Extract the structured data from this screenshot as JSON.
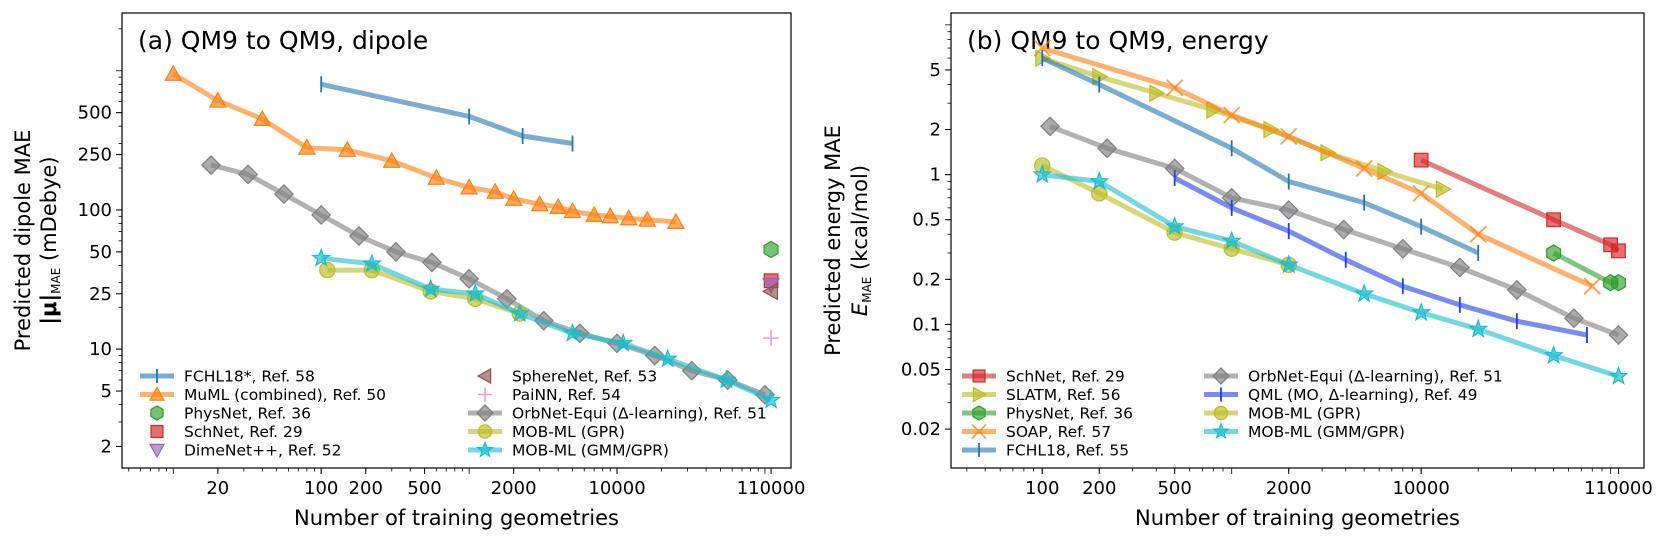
{
  "chart_data": [
    {
      "type": "line",
      "title": "(a) QM9 to QM9, dipole",
      "xlabel": "Number of training geometries",
      "ylabel": [
        "Predicted dipole MAE",
        "|μ|",
        "MAE",
        " (mDebye)"
      ],
      "xscale": "log",
      "yscale": "log",
      "xlim": [
        4.5,
        150000
      ],
      "ylim": [
        1.4,
        2600
      ],
      "xticks": [
        20,
        100,
        200,
        500,
        2000,
        10000,
        110000
      ],
      "xticklabels": [
        "20",
        "100",
        "200",
        "500",
        "2000",
        "10000",
        "110000"
      ],
      "yticks": [
        2,
        5,
        10,
        25,
        50,
        100,
        250,
        500
      ],
      "yticklabels": [
        "2",
        "5",
        "10",
        "25",
        "50",
        "100",
        "250",
        "500"
      ],
      "legend": "lower-left",
      "series": [
        {
          "name": "FCHL18*, Ref. 58",
          "color": "#1f77b4",
          "marker": "vline",
          "x": [
            100,
            1000,
            2300,
            5000
          ],
          "y": [
            800,
            470,
            340,
            300
          ]
        },
        {
          "name": "MuML (combined), Ref. 50",
          "color": "#ff7f0e",
          "marker": "triangle",
          "x": [
            10,
            20,
            40,
            80,
            150,
            300,
            600,
            1000,
            1500,
            2000,
            3000,
            4000,
            5000,
            7000,
            9000,
            12000,
            16000,
            25000
          ],
          "y": [
            950,
            610,
            450,
            280,
            270,
            225,
            170,
            145,
            135,
            120,
            110,
            105,
            98,
            92,
            90,
            87,
            85,
            82
          ]
        },
        {
          "name": "PhysNet, Ref. 36",
          "color": "#2ca02c",
          "marker": "hexagon",
          "x": [
            110000
          ],
          "y": [
            52
          ]
        },
        {
          "name": "SchNet, Ref. 29",
          "color": "#d62728",
          "marker": "square",
          "x": [
            110000
          ],
          "y": [
            31
          ]
        },
        {
          "name": "DimeNet++, Ref. 52",
          "color": "#9467bd",
          "marker": "triangle-down",
          "x": [
            110000
          ],
          "y": [
            29
          ]
        },
        {
          "name": "SphereNet, Ref. 53",
          "color": "#8c564b",
          "marker": "triangle-left",
          "x": [
            110000
          ],
          "y": [
            26
          ]
        },
        {
          "name": "PaiNN, Ref. 54",
          "color": "#e377c2",
          "marker": "plus",
          "x": [
            110000
          ],
          "y": [
            12
          ]
        },
        {
          "name": "OrbNet-Equi (Δ-learning), Ref. 51",
          "color": "#7f7f7f",
          "marker": "diamond",
          "x": [
            18,
            32,
            56,
            100,
            180,
            320,
            560,
            1000,
            1800,
            3200,
            5600,
            10000,
            18000,
            32000,
            56000,
            100000
          ],
          "y": [
            210,
            180,
            130,
            92,
            65,
            50,
            42,
            32,
            23,
            16,
            13,
            11,
            9,
            7,
            6,
            4.7
          ]
        },
        {
          "name": "MOB-ML (GPR)",
          "color": "#bcbd22",
          "marker": "circle",
          "x": [
            110,
            220,
            550,
            1100,
            2200
          ],
          "y": [
            37,
            37,
            26,
            23,
            18
          ]
        },
        {
          "name": "MOB-ML (GMM/GPR)",
          "color": "#17becf",
          "marker": "star",
          "x": [
            100,
            220,
            550,
            1100,
            2200,
            5000,
            11000,
            22000,
            55000,
            110000
          ],
          "y": [
            45,
            41,
            27,
            25,
            18,
            13,
            11,
            8.5,
            6,
            4.3
          ]
        }
      ]
    },
    {
      "type": "line",
      "title": "(b) QM9 to QM9, energy",
      "xlabel": "Number of training geometries",
      "ylabel": [
        "Predicted energy MAE",
        "E",
        "MAE",
        " (kcal/mol)"
      ],
      "xscale": "log",
      "yscale": "log",
      "xlim": [
        33,
        150000
      ],
      "ylim": [
        0.011,
        12
      ],
      "xticks": [
        100,
        200,
        500,
        2000,
        10000,
        110000
      ],
      "xticklabels": [
        "100",
        "200",
        "500",
        "2000",
        "10000",
        "110000"
      ],
      "yticks": [
        0.02,
        0.05,
        0.1,
        0.2,
        0.5,
        1,
        2,
        5
      ],
      "yticklabels": [
        "0.02",
        "0.05",
        "0.1",
        "0.2",
        "0.5",
        "1",
        "2",
        "5"
      ],
      "legend": "lower-left",
      "series": [
        {
          "name": "SchNet, Ref. 29",
          "color": "#d62728",
          "marker": "square",
          "x": [
            10000,
            50000,
            100000,
            110000
          ],
          "y": [
            1.25,
            0.5,
            0.34,
            0.31
          ]
        },
        {
          "name": "SLATM, Ref. 56",
          "color": "#bcbd22",
          "marker": "triangle-right",
          "x": [
            100,
            200,
            400,
            800,
            1600,
            3200,
            6400,
            13000
          ],
          "y": [
            6,
            4.5,
            3.5,
            2.7,
            2,
            1.4,
            1.05,
            0.8
          ]
        },
        {
          "name": "PhysNet, Ref. 36",
          "color": "#2ca02c",
          "marker": "hexagon",
          "x": [
            50000,
            100000,
            110000
          ],
          "y": [
            0.3,
            0.19,
            0.19
          ]
        },
        {
          "name": "SOAP, Ref. 57",
          "color": "#ff7f0e",
          "marker": "x",
          "x": [
            100,
            500,
            1000,
            2000,
            5000,
            10000,
            20000,
            80000
          ],
          "y": [
            7,
            3.8,
            2.5,
            1.8,
            1.1,
            0.75,
            0.4,
            0.18
          ]
        },
        {
          "name": "FCHL18, Ref. 55",
          "color": "#1f77b4",
          "marker": "vline",
          "x": [
            100,
            200,
            1000,
            2000,
            5000,
            10000,
            20000
          ],
          "y": [
            6,
            4,
            1.5,
            0.9,
            0.65,
            0.45,
            0.3
          ]
        },
        {
          "name": "OrbNet-Equi (Δ-learning), Ref. 51",
          "color": "#7f7f7f",
          "marker": "diamond",
          "x": [
            110,
            220,
            500,
            1000,
            2000,
            3900,
            8000,
            16000,
            32000,
            64000,
            110000
          ],
          "y": [
            2.1,
            1.5,
            1.1,
            0.7,
            0.58,
            0.43,
            0.32,
            0.24,
            0.17,
            0.11,
            0.085
          ]
        },
        {
          "name": "QML (MO, Δ-learning), Ref. 49",
          "color": "#1f3ff0",
          "marker": "vline",
          "x": [
            500,
            1000,
            2000,
            4000,
            8000,
            16000,
            32000,
            75000
          ],
          "y": [
            0.95,
            0.6,
            0.42,
            0.27,
            0.18,
            0.135,
            0.105,
            0.085
          ]
        },
        {
          "name": "MOB-ML (GPR)",
          "color": "#bcbd22",
          "marker": "circle",
          "x": [
            100,
            200,
            500,
            1000,
            2000
          ],
          "y": [
            1.15,
            0.75,
            0.41,
            0.32,
            0.25
          ]
        },
        {
          "name": "MOB-ML (GMM/GPR)",
          "color": "#17becf",
          "marker": "star",
          "x": [
            100,
            200,
            500,
            1000,
            2000,
            5000,
            10000,
            20000,
            50000,
            110000
          ],
          "y": [
            1.0,
            0.9,
            0.45,
            0.36,
            0.25,
            0.16,
            0.12,
            0.093,
            0.062,
            0.045
          ]
        }
      ]
    }
  ]
}
